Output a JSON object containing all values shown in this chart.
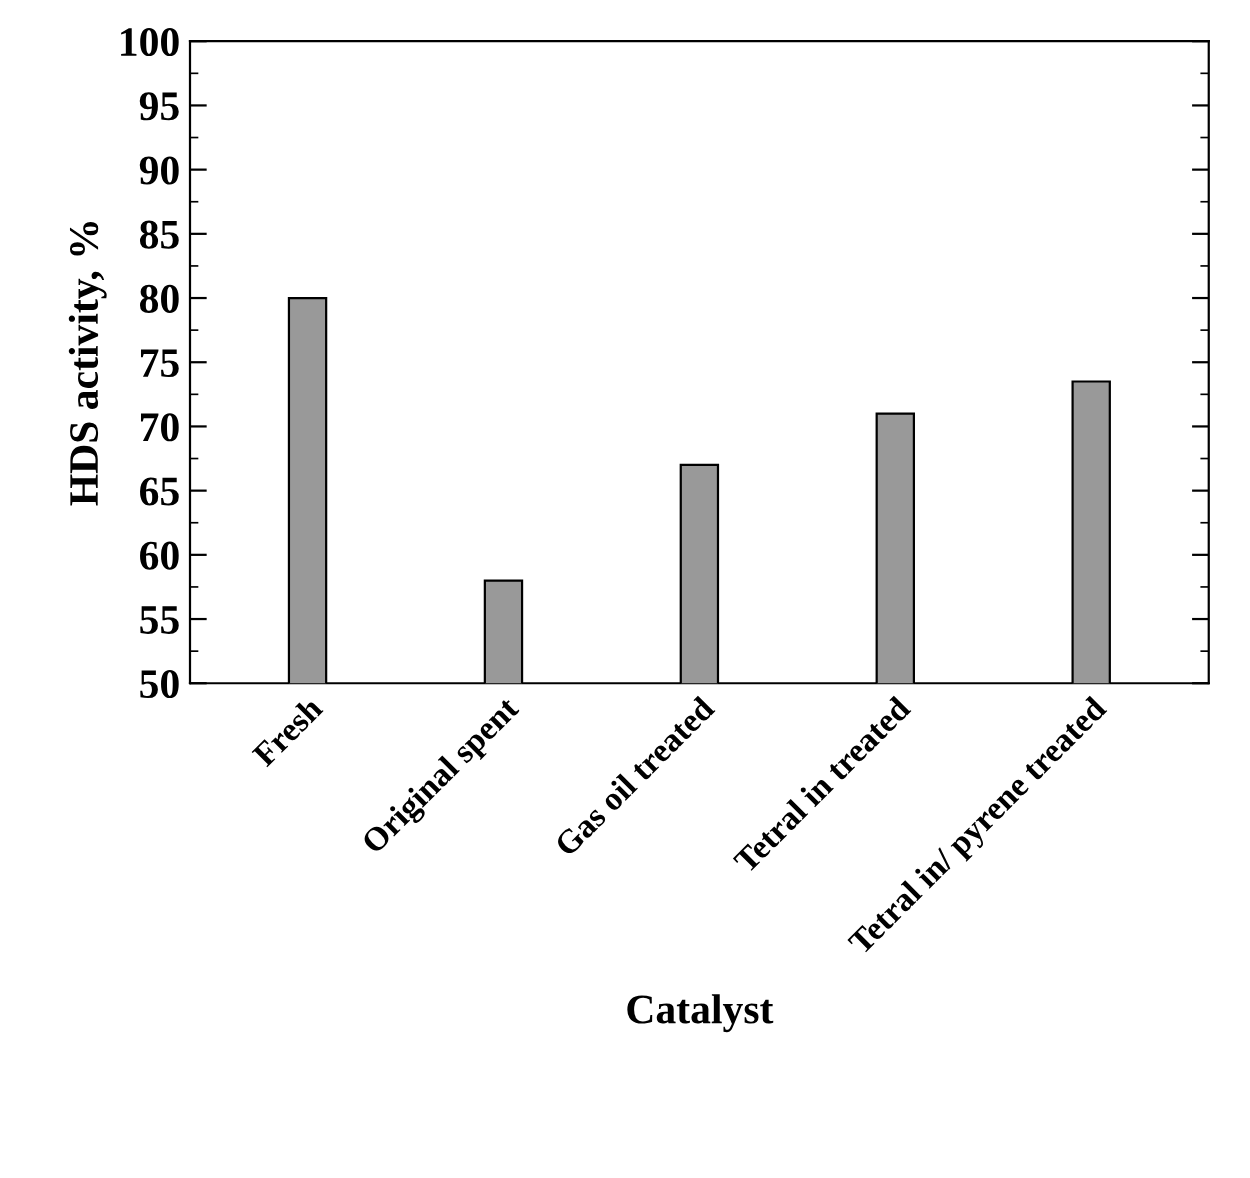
{
  "chart_data": {
    "type": "bar",
    "xlabel": "Catalyst",
    "ylabel": "HDS activity, %",
    "categories": [
      "Fresh",
      "Original spent",
      "Gas oil treated",
      "Tetral in treated",
      "Tetral in/ pyrene treated"
    ],
    "values": [
      80,
      58,
      67,
      71,
      73.5
    ],
    "color": "#999999",
    "ylim": [
      50,
      100
    ],
    "yticks": [
      50,
      55,
      60,
      65,
      70,
      75,
      80,
      85,
      90,
      95,
      100
    ],
    "grid": false,
    "legend": false
  }
}
